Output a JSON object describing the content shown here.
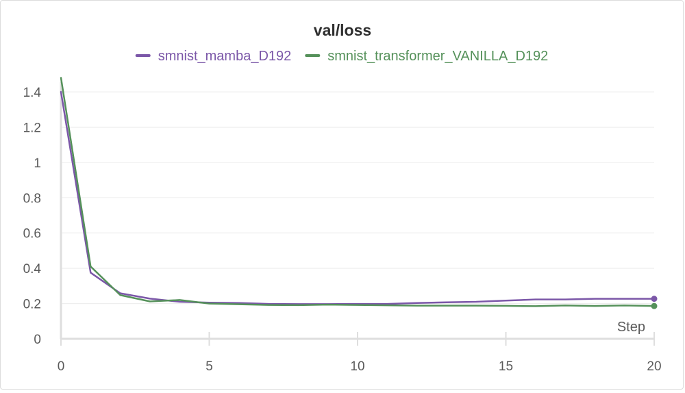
{
  "chart_data": {
    "type": "line",
    "title": "val/loss",
    "xlabel": "Step",
    "ylabel": "",
    "xlim": [
      0,
      20
    ],
    "ylim": [
      0,
      1.4
    ],
    "x_ticks": [
      0,
      5,
      10,
      15,
      20
    ],
    "y_ticks": [
      0,
      0.2,
      0.4,
      0.6,
      0.8,
      1,
      1.2,
      1.4
    ],
    "grid": true,
    "legend_position": "top-center",
    "x": [
      0,
      1,
      2,
      3,
      4,
      5,
      6,
      7,
      8,
      9,
      10,
      11,
      12,
      13,
      14,
      15,
      16,
      17,
      18,
      19,
      20
    ],
    "series": [
      {
        "name": "smnist_mamba_D192",
        "color": "#7b57a8",
        "values": [
          1.4,
          0.375,
          0.258,
          0.228,
          0.21,
          0.205,
          0.203,
          0.198,
          0.197,
          0.197,
          0.198,
          0.198,
          0.203,
          0.207,
          0.21,
          0.217,
          0.223,
          0.223,
          0.227,
          0.227,
          0.227
        ]
      },
      {
        "name": "smnist_transformer_VANILLA_D192",
        "color": "#55915a",
        "values": [
          1.48,
          0.41,
          0.248,
          0.212,
          0.22,
          0.2,
          0.196,
          0.192,
          0.191,
          0.194,
          0.192,
          0.19,
          0.188,
          0.188,
          0.188,
          0.187,
          0.185,
          0.189,
          0.186,
          0.189,
          0.186
        ]
      }
    ]
  }
}
